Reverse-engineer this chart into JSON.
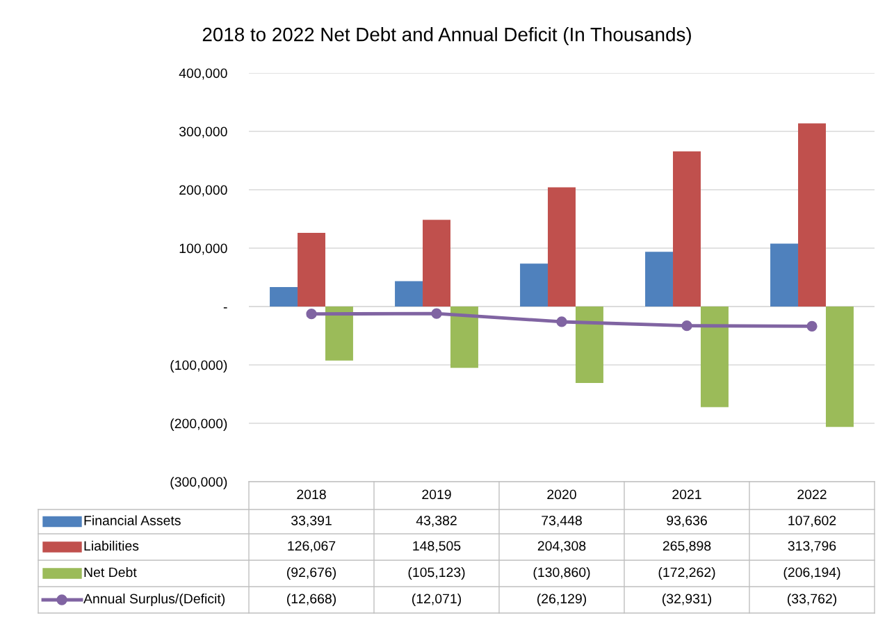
{
  "chart_data": {
    "type": "bar",
    "title": "2018 to 2022 Net Debt and Annual Deficit (In Thousands)",
    "categories": [
      "2018",
      "2019",
      "2020",
      "2021",
      "2022"
    ],
    "series": [
      {
        "name": "Financial Assets",
        "color": "#4f81bd",
        "values": [
          33391,
          43382,
          73448,
          93636,
          107602
        ],
        "value_labels": [
          "33,391",
          "43,382",
          "73,448",
          "93,636",
          "107,602"
        ]
      },
      {
        "name": "Liabilities",
        "color": "#c0504d",
        "values": [
          126067,
          148505,
          204308,
          265898,
          313796
        ],
        "value_labels": [
          "126,067",
          "148,505",
          "204,308",
          "265,898",
          "313,796"
        ]
      },
      {
        "name": "Net Debt",
        "color": "#9bbb59",
        "values": [
          -92676,
          -105123,
          -130860,
          -172262,
          -206194
        ],
        "value_labels": [
          "(92,676)",
          "(105,123)",
          "(130,860)",
          "(172,262)",
          "(206,194)"
        ]
      },
      {
        "name": "Annual Surplus/(Deficit)",
        "type": "line",
        "color": "#8064a2",
        "marker": "circle",
        "values": [
          -12668,
          -12071,
          -26129,
          -32931,
          -33762
        ],
        "value_labels": [
          "(12,668)",
          "(12,071)",
          "(26,129)",
          "(32,931)",
          "(33,762)"
        ]
      }
    ],
    "ylim": [
      -300000,
      400000
    ],
    "yticks": [
      {
        "value": -300000,
        "label": "(300,000)"
      },
      {
        "value": -200000,
        "label": "(200,000)"
      },
      {
        "value": -100000,
        "label": "(100,000)"
      },
      {
        "value": 0,
        "label": "-"
      },
      {
        "value": 100000,
        "label": "100,000"
      },
      {
        "value": 200000,
        "label": "200,000"
      },
      {
        "value": 300000,
        "label": "300,000"
      },
      {
        "value": 400000,
        "label": "400,000"
      }
    ],
    "grid": "y",
    "legend": "bottom"
  }
}
